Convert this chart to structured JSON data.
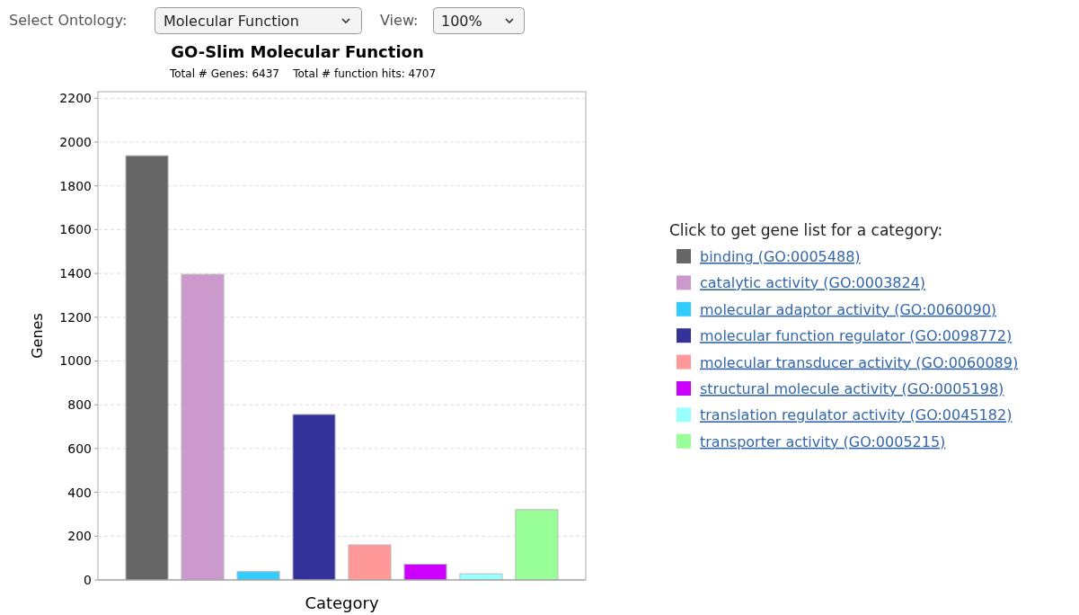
{
  "chart_data": {
    "type": "bar",
    "title": "GO-Slim Molecular Function",
    "subtitle": "Total # Genes: 6437    Total # function hits: 4707",
    "xlabel": "Category",
    "ylabel": "Genes",
    "legend_title": "Click to get gene list for a category:",
    "annotations": [
      "Select Ontology:",
      "Molecular Function",
      "View:",
      "100%"
    ],
    "categories": [
      null,
      null,
      null,
      null,
      null,
      null,
      null,
      null
    ],
    "series": [
      {
        "name": "binding (GO:0005488)",
        "color": "#666666",
        "values": [
          1938,
          null,
          null,
          null,
          null,
          null,
          null,
          null
        ]
      },
      {
        "name": "catalytic activity (GO:0003824)",
        "color": "#cc99cc",
        "values": [
          null,
          1396,
          null,
          null,
          null,
          null,
          null,
          null
        ]
      },
      {
        "name": "molecular adaptor activity (GO:0060090)",
        "color": "#33ccff",
        "values": [
          null,
          null,
          38,
          null,
          null,
          null,
          null,
          null
        ]
      },
      {
        "name": "molecular function regulator (GO:0098772)",
        "color": "#333399",
        "values": [
          null,
          null,
          null,
          756,
          null,
          null,
          null,
          null
        ]
      },
      {
        "name": "molecular transducer activity (GO:0060089)",
        "color": "#ff9999",
        "values": [
          null,
          null,
          null,
          null,
          160,
          null,
          null,
          null
        ]
      },
      {
        "name": "structural molecule activity (GO:0005198)",
        "color": "#cc00ff",
        "values": [
          null,
          null,
          null,
          null,
          null,
          72,
          null,
          null
        ]
      },
      {
        "name": "translation regulator activity (GO:0045182)",
        "color": "#99ffff",
        "values": [
          null,
          null,
          null,
          null,
          null,
          null,
          28,
          null
        ]
      },
      {
        "name": "transporter activity (GO:0005215)",
        "color": "#99ff99",
        "values": [
          null,
          null,
          null,
          null,
          null,
          null,
          null,
          321
        ]
      }
    ],
    "ylim": [
      0,
      2230
    ],
    "yticks": [
      0,
      200,
      400,
      600,
      800,
      1000,
      1200,
      1400,
      1600,
      1800,
      2000,
      2200
    ],
    "grid": "y",
    "legend": "right",
    "tick_labels": "y"
  }
}
